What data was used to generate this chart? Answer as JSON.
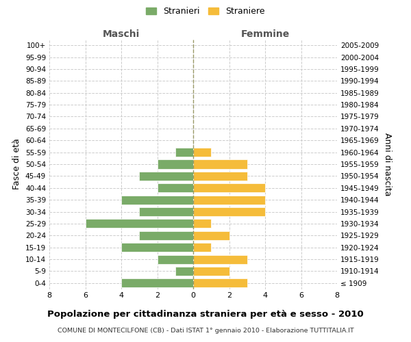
{
  "age_groups": [
    "100+",
    "95-99",
    "90-94",
    "85-89",
    "80-84",
    "75-79",
    "70-74",
    "65-69",
    "60-64",
    "55-59",
    "50-54",
    "45-49",
    "40-44",
    "35-39",
    "30-34",
    "25-29",
    "20-24",
    "15-19",
    "10-14",
    "5-9",
    "0-4"
  ],
  "birth_years": [
    "≤ 1909",
    "1910-1914",
    "1915-1919",
    "1920-1924",
    "1925-1929",
    "1930-1934",
    "1935-1939",
    "1940-1944",
    "1945-1949",
    "1950-1954",
    "1955-1959",
    "1960-1964",
    "1965-1969",
    "1970-1974",
    "1975-1979",
    "1980-1984",
    "1985-1989",
    "1990-1994",
    "1995-1999",
    "2000-2004",
    "2005-2009"
  ],
  "maschi": [
    0,
    0,
    0,
    0,
    0,
    0,
    0,
    0,
    0,
    1,
    2,
    3,
    2,
    4,
    3,
    6,
    3,
    4,
    2,
    1,
    4
  ],
  "femmine": [
    0,
    0,
    0,
    0,
    0,
    0,
    0,
    0,
    0,
    1,
    3,
    3,
    4,
    4,
    4,
    1,
    2,
    1,
    3,
    2,
    3
  ],
  "color_maschi": "#7aab68",
  "color_femmine": "#f5bc3a",
  "background_color": "#ffffff",
  "grid_color": "#cccccc",
  "title": "Popolazione per cittadinanza straniera per età e sesso - 2010",
  "subtitle": "COMUNE DI MONTECILFONE (CB) - Dati ISTAT 1° gennaio 2010 - Elaborazione TUTTITALIA.IT",
  "ylabel_left": "Fasce di età",
  "ylabel_right": "Anni di nascita",
  "label_maschi": "Maschi",
  "label_femmine": "Femmine",
  "legend_stranieri": "Stranieri",
  "legend_straniere": "Straniere",
  "xlim": 8,
  "bar_height": 0.75
}
